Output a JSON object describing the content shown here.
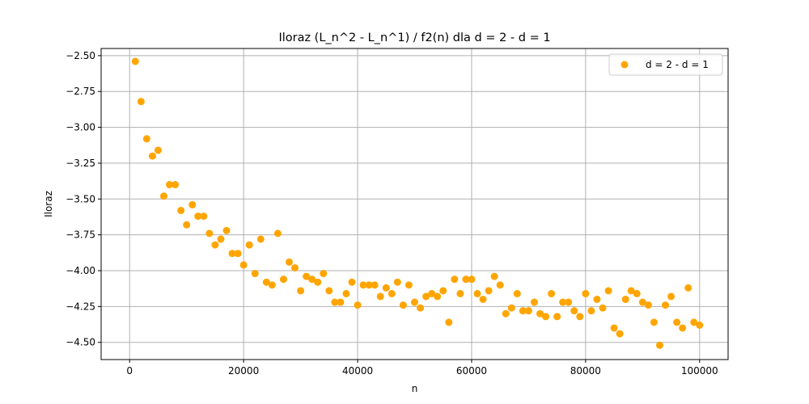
{
  "chart_data": {
    "type": "scatter",
    "title": "Iloraz (L_n^2 - L_n^1) / f2(n) dla d = 2 - d = 1",
    "xlabel": "n",
    "ylabel": "Iloraz",
    "xlim": [
      -5000,
      105000
    ],
    "ylim": [
      -4.62,
      -2.45
    ],
    "xticks": [
      0,
      20000,
      40000,
      60000,
      80000,
      100000
    ],
    "xtick_labels": [
      "0",
      "20000",
      "40000",
      "60000",
      "80000",
      "100000"
    ],
    "yticks": [
      -4.5,
      -4.25,
      -4.0,
      -3.75,
      -3.5,
      -3.25,
      -3.0,
      -2.75,
      -2.5
    ],
    "ytick_labels": [
      "−4.50",
      "−4.25",
      "−4.00",
      "−3.75",
      "−3.50",
      "−3.25",
      "−3.00",
      "−2.75",
      "−2.50"
    ],
    "grid": true,
    "legend_position": "top-right",
    "series": [
      {
        "name": "d = 2 - d = 1",
        "color": "#ffa500",
        "x": [
          1000,
          2000,
          3000,
          4000,
          5000,
          6000,
          7000,
          8000,
          9000,
          10000,
          11000,
          12000,
          13000,
          14000,
          15000,
          16000,
          17000,
          18000,
          19000,
          20000,
          21000,
          22000,
          23000,
          24000,
          25000,
          26000,
          27000,
          28000,
          29000,
          30000,
          31000,
          32000,
          33000,
          34000,
          35000,
          36000,
          37000,
          38000,
          39000,
          40000,
          41000,
          42000,
          43000,
          44000,
          45000,
          46000,
          47000,
          48000,
          49000,
          50000,
          51000,
          52000,
          53000,
          54000,
          55000,
          56000,
          57000,
          58000,
          59000,
          60000,
          61000,
          62000,
          63000,
          64000,
          65000,
          66000,
          67000,
          68000,
          69000,
          70000,
          71000,
          72000,
          73000,
          74000,
          75000,
          76000,
          77000,
          78000,
          79000,
          80000,
          81000,
          82000,
          83000,
          84000,
          85000,
          86000,
          87000,
          88000,
          89000,
          90000,
          91000,
          92000,
          93000,
          94000,
          95000,
          96000,
          97000,
          98000,
          99000,
          100000
        ],
        "y": [
          -2.54,
          -2.82,
          -3.08,
          -3.2,
          -3.16,
          -3.48,
          -3.4,
          -3.4,
          -3.58,
          -3.68,
          -3.54,
          -3.62,
          -3.62,
          -3.74,
          -3.82,
          -3.78,
          -3.72,
          -3.88,
          -3.88,
          -3.96,
          -3.82,
          -4.02,
          -3.78,
          -4.08,
          -4.1,
          -3.74,
          -4.06,
          -3.94,
          -3.98,
          -4.14,
          -4.04,
          -4.06,
          -4.08,
          -4.02,
          -4.14,
          -4.22,
          -4.22,
          -4.16,
          -4.08,
          -4.24,
          -4.1,
          -4.1,
          -4.1,
          -4.18,
          -4.12,
          -4.16,
          -4.08,
          -4.24,
          -4.1,
          -4.22,
          -4.26,
          -4.18,
          -4.16,
          -4.18,
          -4.14,
          -4.36,
          -4.06,
          -4.16,
          -4.06,
          -4.06,
          -4.16,
          -4.2,
          -4.14,
          -4.04,
          -4.1,
          -4.3,
          -4.26,
          -4.16,
          -4.28,
          -4.28,
          -4.22,
          -4.3,
          -4.32,
          -4.16,
          -4.32,
          -4.22,
          -4.22,
          -4.28,
          -4.32,
          -4.16,
          -4.28,
          -4.2,
          -4.26,
          -4.14,
          -4.4,
          -4.44,
          -4.2,
          -4.14,
          -4.16,
          -4.22,
          -4.24,
          -4.36,
          -4.52,
          -4.24,
          -4.18,
          -4.36,
          -4.4,
          -4.12,
          -4.36,
          -4.38
        ]
      }
    ]
  }
}
